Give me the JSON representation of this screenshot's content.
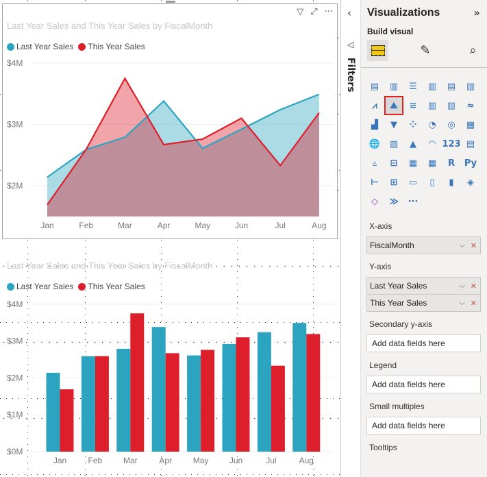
{
  "canvas": {
    "visual1": {
      "title": "Last Year Sales and This Year Sales by FiscalMonth",
      "header_icons": [
        "filter-icon",
        "focus-mode-icon",
        "more-options-icon"
      ]
    },
    "visual2": {
      "title": "Last Year Sales and This Year Sales by FiscalMonth"
    }
  },
  "colors": {
    "last_year": "#2da4bf",
    "this_year": "#dc1f2b",
    "selected_outline": "#e02020"
  },
  "chart_data": [
    {
      "type": "area",
      "title": "Last Year Sales and This Year Sales by FiscalMonth",
      "categories": [
        "Jan",
        "Feb",
        "Mar",
        "Apr",
        "May",
        "Jun",
        "Jul",
        "Aug"
      ],
      "yticks": [
        "$2M",
        "$3M",
        "$4M"
      ],
      "ylim": [
        1.5,
        4.0
      ],
      "grid": true,
      "legend": "top-left",
      "series": [
        {
          "name": "Last Year Sales",
          "values": [
            2.14,
            2.59,
            2.79,
            3.38,
            2.61,
            2.92,
            3.24,
            3.49
          ]
        },
        {
          "name": "This Year Sales",
          "values": [
            1.69,
            2.59,
            3.75,
            2.67,
            2.76,
            3.1,
            2.33,
            3.19
          ]
        }
      ]
    },
    {
      "type": "bar",
      "title": "Last Year Sales and This Year Sales by FiscalMonth",
      "categories": [
        "Jan",
        "Feb",
        "Mar",
        "Apr",
        "May",
        "Jun",
        "Jul",
        "Aug"
      ],
      "yticks": [
        "$0M",
        "$1M",
        "$2M",
        "$3M",
        "$4M"
      ],
      "ylim": [
        0,
        4.0
      ],
      "grid": true,
      "legend": "top-left",
      "series": [
        {
          "name": "Last Year Sales",
          "values": [
            2.14,
            2.59,
            2.79,
            3.38,
            2.61,
            2.92,
            3.24,
            3.49
          ]
        },
        {
          "name": "This Year Sales",
          "values": [
            1.69,
            2.59,
            3.75,
            2.67,
            2.76,
            3.1,
            2.33,
            3.19
          ]
        }
      ]
    }
  ],
  "filters": {
    "label": "Filters"
  },
  "viz": {
    "title": "Visualizations",
    "subtitle": "Build visual",
    "tabs": [
      "build-visual-icon",
      "format-visual-icon",
      "analytics-icon"
    ],
    "icons": [
      {
        "n": "stacked-bar-chart",
        "g": "▤"
      },
      {
        "n": "stacked-column-chart",
        "g": "▥"
      },
      {
        "n": "clustered-bar-chart",
        "g": "☰"
      },
      {
        "n": "clustered-column-chart",
        "g": "▥"
      },
      {
        "n": "100-stacked-bar-chart",
        "g": "▤"
      },
      {
        "n": "100-stacked-column-chart",
        "g": "▥"
      },
      {
        "n": "line-chart",
        "g": "⩘"
      },
      {
        "n": "area-chart",
        "g": "⛰"
      },
      {
        "n": "stacked-area-chart",
        "g": "≋"
      },
      {
        "n": "line-and-stacked-column-chart",
        "g": "▥"
      },
      {
        "n": "line-and-clustered-column-chart",
        "g": "▥"
      },
      {
        "n": "ribbon-chart",
        "g": "≈"
      },
      {
        "n": "waterfall-chart",
        "g": "▟"
      },
      {
        "n": "funnel-chart",
        "g": "▼"
      },
      {
        "n": "scatter-chart",
        "g": "⁘"
      },
      {
        "n": "pie-chart",
        "g": "◔"
      },
      {
        "n": "donut-chart",
        "g": "◎"
      },
      {
        "n": "treemap",
        "g": "▦"
      },
      {
        "n": "map",
        "g": "🌐"
      },
      {
        "n": "filled-map",
        "g": "▨"
      },
      {
        "n": "azure-map",
        "g": "▲"
      },
      {
        "n": "gauge",
        "g": "◠"
      },
      {
        "n": "card",
        "g": "123"
      },
      {
        "n": "multi-row-card",
        "g": "▤"
      },
      {
        "n": "kpi",
        "g": "▵"
      },
      {
        "n": "slicer",
        "g": "⊟"
      },
      {
        "n": "table",
        "g": "▦"
      },
      {
        "n": "matrix",
        "g": "▦"
      },
      {
        "n": "r-script-visual",
        "g": "R"
      },
      {
        "n": "python-visual",
        "g": "Py"
      },
      {
        "n": "key-influencers",
        "g": "⊢"
      },
      {
        "n": "decomposition-tree",
        "g": "⊞"
      },
      {
        "n": "qa",
        "g": "▭"
      },
      {
        "n": "smart-narrative",
        "g": "▯"
      },
      {
        "n": "paginated-report",
        "g": "▮"
      },
      {
        "n": "arcgis-map",
        "g": "◈"
      },
      {
        "n": "power-apps",
        "g": "◇"
      },
      {
        "n": "power-automate",
        "g": "≫"
      },
      {
        "n": "more-visuals",
        "g": "···"
      }
    ],
    "selected_icon": "area-chart",
    "wells": [
      {
        "label": "X-axis",
        "fields": [
          "FiscalMonth"
        ]
      },
      {
        "label": "Y-axis",
        "fields": [
          "Last Year Sales",
          "This Year Sales"
        ]
      },
      {
        "label": "Secondary y-axis",
        "placeholder": "Add data fields here"
      },
      {
        "label": "Legend",
        "placeholder": "Add data fields here"
      },
      {
        "label": "Small multiples",
        "placeholder": "Add data fields here"
      },
      {
        "label": "Tooltips"
      }
    ]
  }
}
